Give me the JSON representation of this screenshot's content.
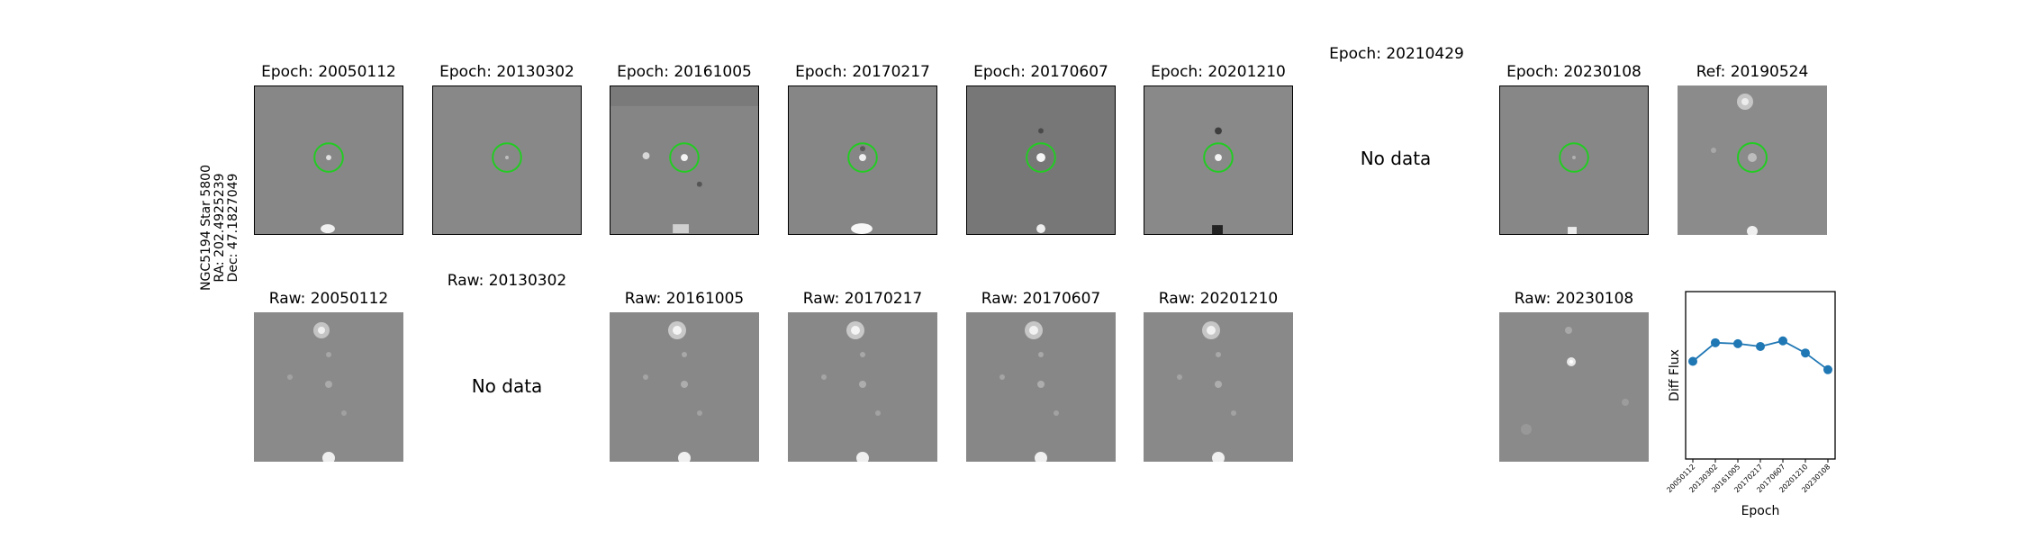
{
  "row_label": [
    "NGC5194 Star 5800",
    "RA: 202.4925239",
    "Dec: 47.1827049"
  ],
  "diff_row": [
    {
      "title": "Epoch: 20050112",
      "status": "image"
    },
    {
      "title": "Epoch: 20130302",
      "status": "image"
    },
    {
      "title": "Epoch: 20161005",
      "status": "image"
    },
    {
      "title": "Epoch: 20170217",
      "status": "image"
    },
    {
      "title": "Epoch: 20170607",
      "status": "image"
    },
    {
      "title": "Epoch: 20201210",
      "status": "image"
    },
    {
      "title": "Epoch: 20210429",
      "status": "nodata",
      "nodata_text": "No data"
    },
    {
      "title": "Epoch: 20230108",
      "status": "image"
    },
    {
      "title": "Ref: 20190524",
      "status": "image"
    }
  ],
  "raw_row": [
    {
      "title": "Raw: 20050112",
      "status": "image"
    },
    {
      "title": "Raw: 20130302",
      "status": "nodata",
      "nodata_text": "No data"
    },
    {
      "title": "Raw: 20161005",
      "status": "image"
    },
    {
      "title": "Raw: 20170217",
      "status": "image"
    },
    {
      "title": "Raw: 20170607",
      "status": "image"
    },
    {
      "title": "Raw: 20201210",
      "status": "image"
    },
    {
      "title": "Raw: 20230108",
      "status": "image"
    }
  ],
  "colors": {
    "marker_circle": "#22cc22",
    "series": "#1f77b4",
    "image_gray": "#858585"
  },
  "chart_data": {
    "type": "line",
    "x": [
      "20050112",
      "20130302",
      "20161005",
      "20170217",
      "20170607",
      "20201210",
      "20230108"
    ],
    "values": [
      0.25,
      0.45,
      0.44,
      0.41,
      0.47,
      0.34,
      0.16
    ],
    "ylim": [
      -0.8,
      1.0
    ],
    "xlabel": "Epoch",
    "ylabel": "Diff Flux",
    "grid": false
  }
}
